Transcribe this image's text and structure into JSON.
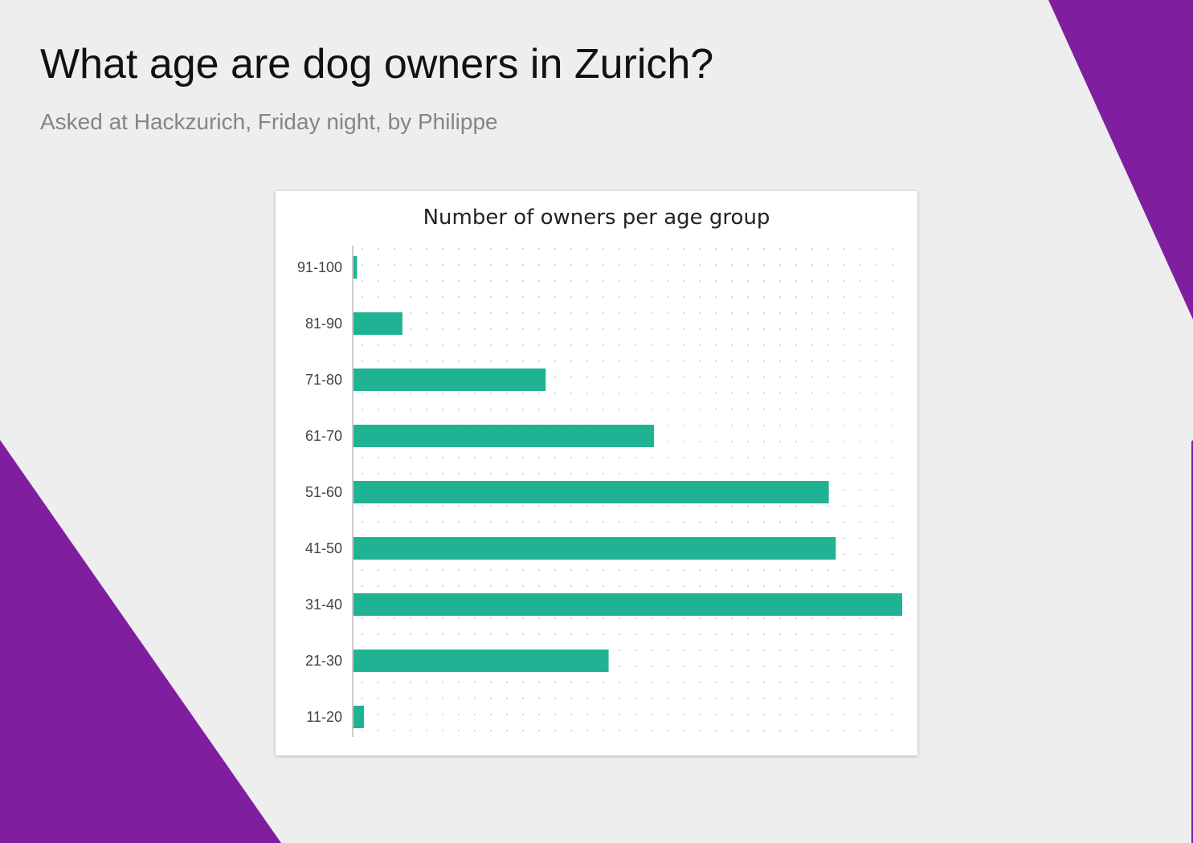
{
  "header": {
    "title": "What age are dog owners in Zurich?",
    "subtitle": "Asked at Hackzurich, Friday night, by Philippe"
  },
  "colors": {
    "background": "#eeeeee",
    "accent_purple": "#7f1fa0",
    "bar": "#1fb393",
    "card": "#ffffff"
  },
  "chart_data": {
    "type": "bar",
    "orientation": "horizontal",
    "title": "Number of owners per age group",
    "categories": [
      "91-100",
      "81-90",
      "71-80",
      "61-70",
      "51-60",
      "41-50",
      "31-40",
      "21-30",
      "11-20"
    ],
    "values": [
      1,
      14,
      55,
      86,
      136,
      138,
      157,
      73,
      3
    ],
    "xlim": [
      0,
      157
    ],
    "xlabel": "",
    "ylabel": "",
    "grid": "dotted",
    "legend": "none"
  }
}
